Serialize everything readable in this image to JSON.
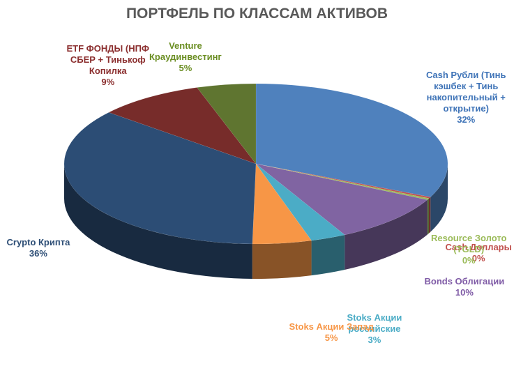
{
  "chart_data": {
    "type": "pie",
    "title": "ПОРТФЕЛЬ ПО КЛАССАМ АКТИВОВ",
    "slices": [
      {
        "label_lines": [
          "Cash Рубли (Тинь",
          "кэшбек + Тинь",
          "накопительный +",
          "открытие)"
        ],
        "percent_label": "32%",
        "value": 32,
        "color": "#4F81BD"
      },
      {
        "label_lines": [
          "Cash Доллары"
        ],
        "percent_label": "0%",
        "value": 0.3,
        "color": "#C0504D"
      },
      {
        "label_lines": [
          "Resource Золото",
          "(TGLD)"
        ],
        "percent_label": "0%",
        "value": 0.3,
        "color": "#9BBB59"
      },
      {
        "label_lines": [
          "Bonds Облигации"
        ],
        "percent_label": "10%",
        "value": 10,
        "color": "#8064A2"
      },
      {
        "label_lines": [
          "Stoks Акции",
          "российские"
        ],
        "percent_label": "3%",
        "value": 3,
        "color": "#4BACC6"
      },
      {
        "label_lines": [
          "Stoks Акции Запад"
        ],
        "percent_label": "5%",
        "value": 5,
        "color": "#F79646"
      },
      {
        "label_lines": [
          "Crypto Крипта"
        ],
        "percent_label": "36%",
        "value": 36,
        "color": "#2C4D75"
      },
      {
        "label_lines": [
          "ETF ФОНДЫ (НПФ",
          "СБЕР + Тинькоф",
          "Копилка"
        ],
        "percent_label": "9%",
        "value": 9,
        "color": "#772C2A"
      },
      {
        "label_lines": [
          "Venture",
          "Краудинвестинг"
        ],
        "percent_label": "5%",
        "value": 5,
        "color": "#5F7530"
      }
    ]
  }
}
